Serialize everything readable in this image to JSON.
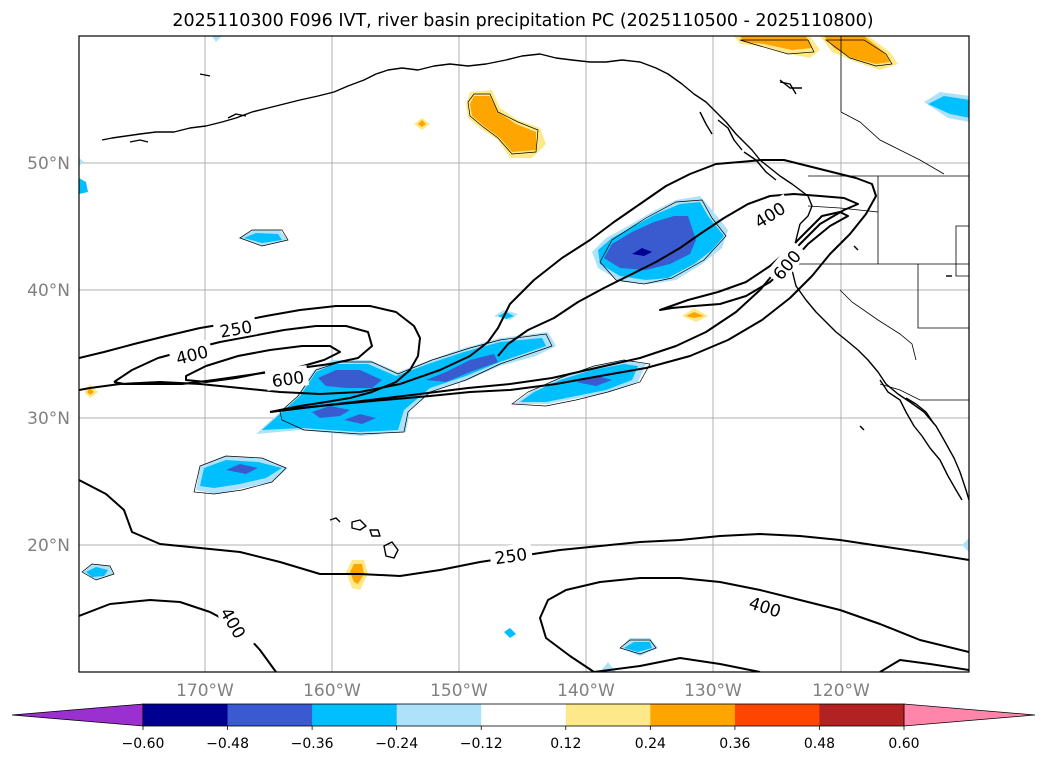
{
  "title": "2025110300 F096 IVT, river basin precipitation PC (2025110500 - 2025110800)",
  "map": {
    "lat_labels": [
      "50°N",
      "40°N",
      "30°N",
      "20°N"
    ],
    "lon_labels": [
      "170°W",
      "160°W",
      "150°W",
      "140°W",
      "130°W",
      "120°W"
    ],
    "contour_labels": [
      "250",
      "400",
      "600",
      "400",
      "600",
      "250",
      "400"
    ],
    "ivt_levels": [
      250,
      400,
      600
    ]
  },
  "colorbar": {
    "tick_labels": [
      "−0.60",
      "−0.48",
      "−0.36",
      "−0.24",
      "−0.12",
      "0.12",
      "0.24",
      "0.36",
      "0.48",
      "0.60"
    ],
    "bounds": [
      -0.6,
      -0.48,
      -0.36,
      -0.24,
      -0.12,
      0.12,
      0.24,
      0.36,
      0.48,
      0.6
    ],
    "colors": [
      "#9b30d0",
      "#000090",
      "#3a5bd0",
      "#00bfff",
      "#aee2fb",
      "#ffffff",
      "#fde98a",
      "#ffa500",
      "#ff4500",
      "#b22222",
      "#ff85aa"
    ]
  }
}
